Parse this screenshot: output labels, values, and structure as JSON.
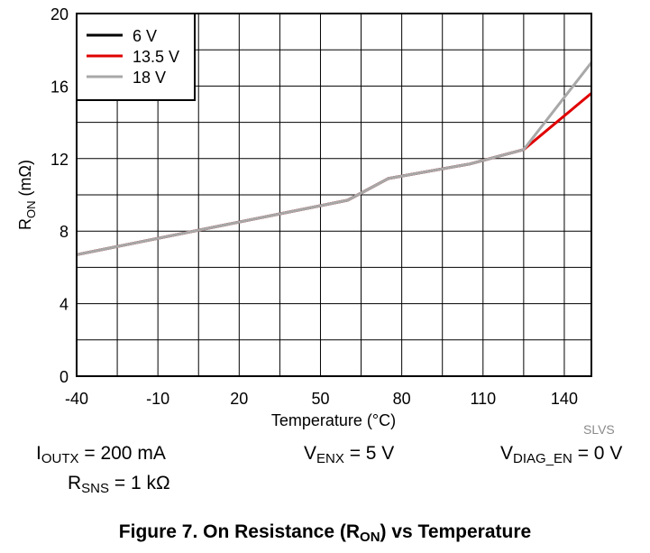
{
  "chart_data": {
    "type": "line",
    "title": "",
    "xlabel": "Temperature (°C)",
    "ylabel_main": "R",
    "ylabel_sub": "ON",
    "ylabel_unit": " (mΩ)",
    "xlim": [
      -40,
      150
    ],
    "ylim": [
      0,
      20
    ],
    "x_ticks": [
      -40,
      -10,
      20,
      50,
      80,
      110,
      140
    ],
    "x_tick_labels": [
      "-40",
      "-10",
      "20",
      "50",
      "80",
      "110",
      "140"
    ],
    "y_ticks": [
      0,
      4,
      8,
      12,
      16,
      20
    ],
    "y_tick_labels": [
      "0",
      "4",
      "8",
      "12",
      "16",
      "20"
    ],
    "x_grid_step": 15,
    "y_grid_step": 2,
    "grid": true,
    "legend_position": "top-left",
    "series": [
      {
        "name": "6 V",
        "color": "#000000",
        "x": [
          -40,
          60,
          65,
          75,
          105,
          125
        ],
        "y": [
          6.7,
          9.7,
          10.1,
          10.9,
          11.7,
          12.5
        ]
      },
      {
        "name": "13.5 V",
        "color": "#e00000",
        "x": [
          -40,
          60,
          65,
          75,
          105,
          125,
          150
        ],
        "y": [
          6.7,
          9.7,
          10.1,
          10.9,
          11.7,
          12.5,
          15.6
        ]
      },
      {
        "name": "18 V",
        "color": "#a8a8a8",
        "x": [
          -40,
          60,
          65,
          75,
          105,
          125,
          150
        ],
        "y": [
          6.7,
          9.7,
          10.1,
          10.9,
          11.7,
          12.5,
          17.3
        ]
      }
    ]
  },
  "conditions": {
    "ioutx_main": "I",
    "ioutx_sub": "OUTX",
    "ioutx_value": " = 200 mA",
    "venx_main": "V",
    "venx_sub": "ENX",
    "venx_value": " = 5 V",
    "vdiag_main": "V",
    "vdiag_sub": "DIAG_EN",
    "vdiag_value": " = 0 V",
    "rsns_main": "R",
    "rsns_sub": "SNS",
    "rsns_value": " = 1 kΩ"
  },
  "doc_code": "SLVS",
  "caption": {
    "prefix": "Figure 7. On Resistance (R",
    "sub": "ON",
    "suffix": ") vs Temperature"
  }
}
